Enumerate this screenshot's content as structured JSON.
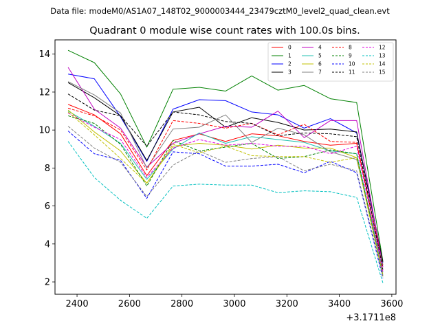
{
  "figure": {
    "suptitle": "Data file: modeM0/AS1A07_148T02_9000003444_23479cztM0_level2_quad_clean.evt"
  },
  "chart_data": {
    "type": "line",
    "title": "Quadrant 0 module wise count rates with 100.0s bins.",
    "xlabel": "",
    "ylabel": "",
    "x_offset_label": "+3.1711e8",
    "x": [
      2366,
      2466,
      2566,
      2666,
      2766,
      2866,
      2966,
      3066,
      3166,
      3266,
      3366,
      3466,
      3566
    ],
    "xlim": [
      2316,
      3616
    ],
    "ylim": [
      1.35,
      14.75
    ],
    "xticks": [
      2400,
      2600,
      2800,
      3000,
      3200,
      3400,
      3600
    ],
    "yticks": [
      2,
      4,
      6,
      8,
      10,
      12,
      14
    ],
    "legend": {
      "location": "upper right",
      "columns": 4
    },
    "series": [
      {
        "name": "0",
        "color": "#ff0000",
        "dash": "solid",
        "values": [
          11.35,
          10.8,
          9.8,
          7.6,
          9.45,
          9.8,
          9.4,
          9.8,
          9.7,
          9.4,
          9.2,
          9.3,
          2.9
        ]
      },
      {
        "name": "1",
        "color": "#008000",
        "dash": "solid",
        "values": [
          14.2,
          13.55,
          11.9,
          9.1,
          12.15,
          12.25,
          12.05,
          12.85,
          12.1,
          12.35,
          11.65,
          11.45,
          3.1
        ]
      },
      {
        "name": "2",
        "color": "#0000ff",
        "dash": "solid",
        "values": [
          12.95,
          12.7,
          10.7,
          8.35,
          11.1,
          11.6,
          11.55,
          10.95,
          10.8,
          10.1,
          10.6,
          9.85,
          3.0
        ]
      },
      {
        "name": "3",
        "color": "#000000",
        "dash": "solid",
        "values": [
          12.5,
          11.7,
          10.75,
          8.4,
          10.95,
          11.2,
          10.15,
          10.65,
          10.4,
          10.0,
          10.05,
          9.9,
          3.05
        ]
      },
      {
        "name": "4",
        "color": "#c000c0",
        "dash": "solid",
        "values": [
          13.3,
          11.1,
          10.1,
          8.05,
          9.3,
          9.8,
          10.2,
          10.15,
          11.0,
          9.6,
          10.5,
          10.5,
          2.8
        ]
      },
      {
        "name": "5",
        "color": "#20c0b0",
        "dash": "solid",
        "values": [
          11.0,
          10.2,
          9.3,
          7.4,
          9.0,
          9.85,
          9.3,
          9.65,
          9.5,
          9.35,
          8.9,
          8.75,
          2.5
        ]
      },
      {
        "name": "6",
        "color": "#c0c000",
        "dash": "solid",
        "values": [
          11.05,
          9.9,
          8.9,
          7.2,
          9.15,
          9.3,
          9.2,
          9.0,
          9.2,
          9.05,
          9.05,
          8.55,
          2.4
        ]
      },
      {
        "name": "7",
        "color": "#808080",
        "dash": "solid",
        "values": [
          12.55,
          11.85,
          10.9,
          8.0,
          10.05,
          10.15,
          10.8,
          9.35,
          10.1,
          9.75,
          8.85,
          8.45,
          2.9
        ]
      },
      {
        "name": "8",
        "color": "#ff0000",
        "dash": "dashed",
        "values": [
          11.15,
          10.75,
          10.0,
          7.9,
          10.5,
          10.35,
          10.1,
          10.35,
          9.75,
          10.3,
          9.4,
          9.35,
          2.75
        ]
      },
      {
        "name": "9",
        "color": "#008000",
        "dash": "dashed",
        "values": [
          10.75,
          10.35,
          9.25,
          7.05,
          9.45,
          8.9,
          9.1,
          9.3,
          8.5,
          8.6,
          8.95,
          8.75,
          2.3
        ]
      },
      {
        "name": "10",
        "color": "#0000ff",
        "dash": "dashed",
        "values": [
          9.95,
          8.75,
          8.4,
          6.4,
          8.85,
          8.75,
          8.1,
          8.1,
          8.2,
          7.75,
          8.35,
          7.75,
          2.2
        ]
      },
      {
        "name": "11",
        "color": "#000000",
        "dash": "dashed",
        "values": [
          11.9,
          11.05,
          10.75,
          9.15,
          10.95,
          10.8,
          10.45,
          10.35,
          9.7,
          9.85,
          9.8,
          9.65,
          2.65
        ]
      },
      {
        "name": "12",
        "color": "#e000e0",
        "dash": "dashed",
        "values": [
          10.9,
          10.15,
          9.5,
          7.5,
          9.05,
          9.5,
          9.2,
          9.3,
          9.15,
          9.15,
          8.75,
          9.15,
          2.55
        ]
      },
      {
        "name": "13",
        "color": "#00c0c0",
        "dash": "dashed",
        "values": [
          9.4,
          7.5,
          6.3,
          5.35,
          7.05,
          7.15,
          7.1,
          7.1,
          6.7,
          6.8,
          6.75,
          6.45,
          1.95
        ]
      },
      {
        "name": "14",
        "color": "#c0c000",
        "dash": "dashed",
        "values": [
          10.95,
          9.75,
          8.5,
          7.2,
          9.25,
          8.8,
          9.15,
          8.65,
          8.6,
          8.6,
          8.3,
          8.55,
          2.3
        ]
      },
      {
        "name": "15",
        "color": "#808080",
        "dash": "dashed",
        "values": [
          10.2,
          9.05,
          8.3,
          6.5,
          8.15,
          8.9,
          8.3,
          8.5,
          8.6,
          7.85,
          8.2,
          7.85,
          2.35
        ]
      }
    ]
  }
}
